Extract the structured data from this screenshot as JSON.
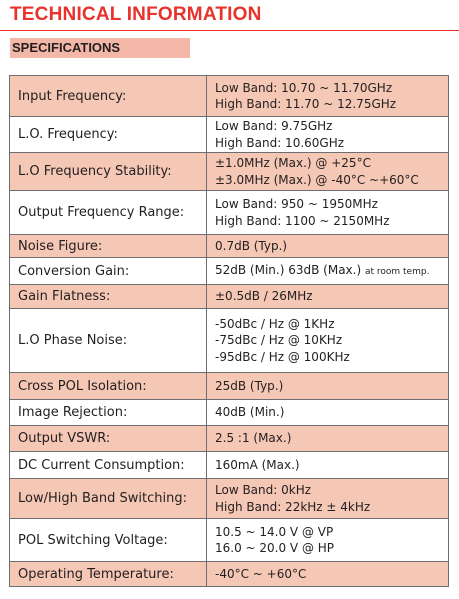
{
  "header": {
    "title": "TECHNICAL INFORMATION",
    "section": "SPECIFICATIONS"
  },
  "colors": {
    "title_red": "#e8322b",
    "row_shade": "#f5c7b5",
    "section_bar": "#f3b7a7",
    "border": "#6d6e71"
  },
  "specs": [
    {
      "label": "Input Frequency:",
      "lines": [
        "Low Band: 10.70 ~ 11.70GHz",
        "High Band: 11.70 ~ 12.75GHz"
      ]
    },
    {
      "label": "L.O. Frequency:",
      "lines": [
        "Low Band: 9.75GHz",
        "High Band: 10.60GHz"
      ]
    },
    {
      "label": "L.O Frequency Stability:",
      "lines": [
        "±1.0MHz (Max.) @ +25°C",
        "±3.0MHz (Max.) @ -40°C ~+60°C"
      ]
    },
    {
      "label": "Output Frequency Range:",
      "lines": [
        "Low Band: 950 ~ 1950MHz",
        "High Band: 1100  ~ 2150MHz"
      ]
    },
    {
      "label": "Noise Figure:",
      "lines": [
        "0.7dB (Typ.)"
      ]
    },
    {
      "label": "Conversion Gain:",
      "lines": [
        "52dB (Min.) 63dB (Max.)"
      ],
      "note": "at room temp."
    },
    {
      "label": "Gain Flatness:",
      "lines": [
        "±0.5dB / 26MHz"
      ]
    },
    {
      "label": "L.O Phase Noise:",
      "lines": [
        "-50dBc / Hz @ 1KHz",
        "-75dBc / Hz @ 10KHz",
        "-95dBc / Hz @ 100KHz"
      ]
    },
    {
      "label": "Cross POL Isolation:",
      "lines": [
        "25dB (Typ.)"
      ]
    },
    {
      "label": "Image Rejection:",
      "lines": [
        "40dB (Min.)"
      ]
    },
    {
      "label": "Output VSWR:",
      "lines": [
        "2.5 :1 (Max.)"
      ]
    },
    {
      "label": "DC Current Consumption:",
      "lines": [
        "160mA (Max.)"
      ]
    },
    {
      "label": "Low/High Band Switching:",
      "lines": [
        "Low Band: 0kHz",
        "High Band: 22kHz ± 4kHz"
      ]
    },
    {
      "label": "POL Switching Voltage:",
      "lines": [
        "10.5 ~ 14.0 V @ VP",
        "16.0 ~ 20.0 V @ HP"
      ]
    },
    {
      "label": "Operating Temperature:",
      "lines": [
        "-40°C ~ +60°C"
      ]
    }
  ]
}
